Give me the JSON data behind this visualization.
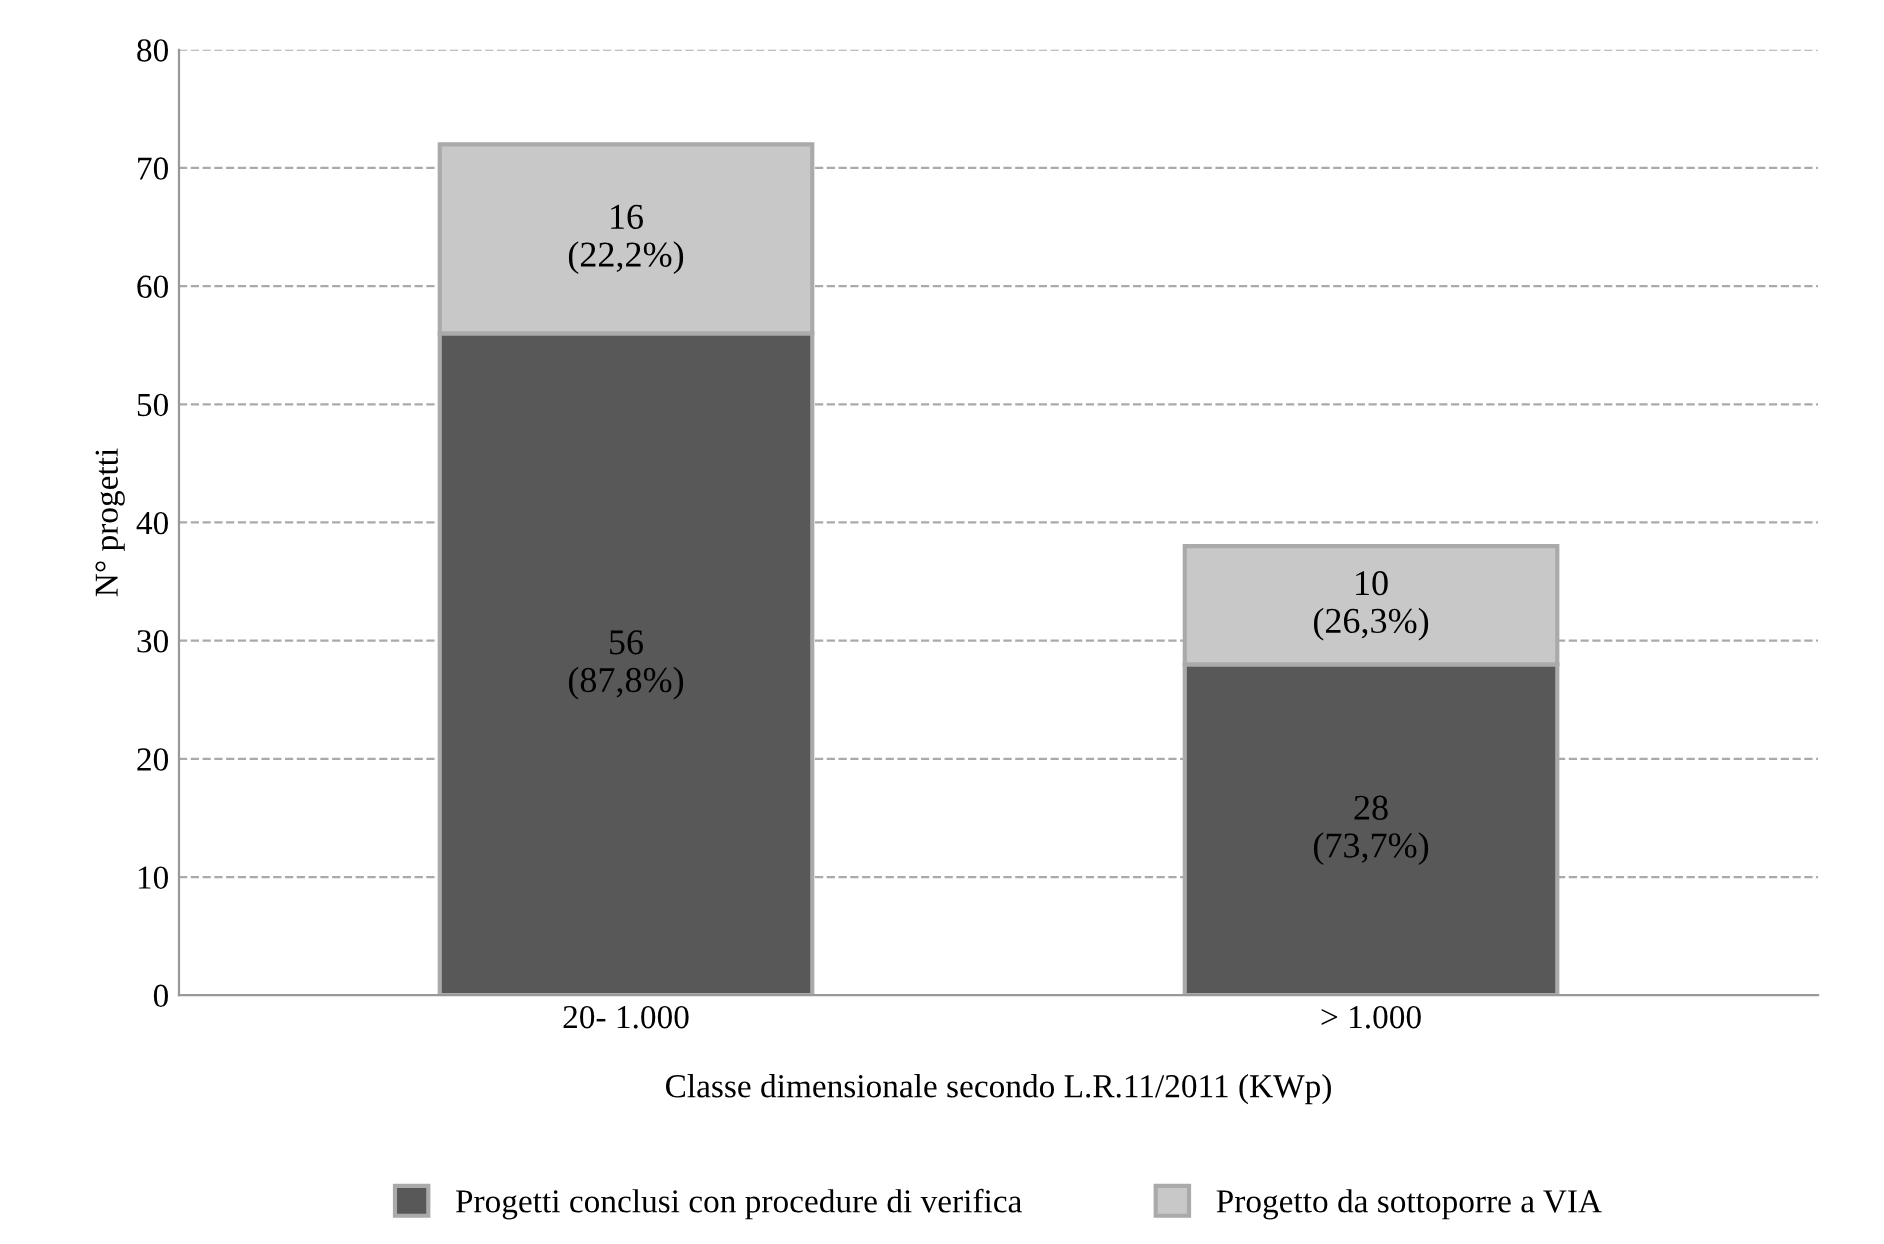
{
  "chart_data": {
    "type": "bar",
    "stacked": true,
    "xlabel": "Classe dimensionale secondo L.R.11/2011 (KWp)",
    "ylabel": "N° progetti",
    "categories": [
      "20- 1.000",
      "> 1.000"
    ],
    "series": [
      {
        "name": "Progetti conclusi con procedure di verifica",
        "color": "#585858",
        "values": [
          56,
          28
        ],
        "value_labels": [
          "56\n(87,8%)",
          "28\n(73,7%)"
        ]
      },
      {
        "name": "Progetto da sottoporre a VIA",
        "color": "#c8c8c8",
        "values": [
          16,
          10
        ],
        "value_labels": [
          "16\n(22,2%)",
          "10\n(26,3%)"
        ]
      }
    ],
    "ylim": [
      0,
      80
    ],
    "yticks": [
      0,
      10,
      20,
      30,
      40,
      50,
      60,
      70,
      80
    ],
    "grid": "y",
    "legend": "bottom"
  }
}
